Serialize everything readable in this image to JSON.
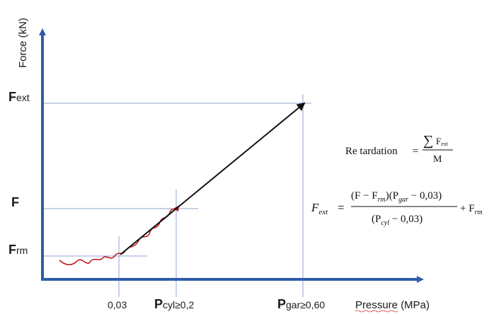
{
  "axes": {
    "y_label": "Force (kN)",
    "x_label": "Pressure (MPa)"
  },
  "y_ticks": {
    "fext": {
      "main": "F",
      "sub": "ext"
    },
    "f": {
      "main": "F",
      "sub": ""
    },
    "frm": {
      "main": "F",
      "sub": "rm"
    }
  },
  "x_ticks": {
    "p003": "0,03",
    "pcyl": {
      "main": "P",
      "sub": "cyl≥0,2"
    },
    "pgar": {
      "main": "P",
      "sub": "gar≥0,60"
    }
  },
  "formula1": {
    "lhs": "Re tardation",
    "eq": "=",
    "num_sum": "∑",
    "num_f": "F",
    "num_sub": "ext",
    "den": "M"
  },
  "formula2": {
    "lhs_f": "F",
    "lhs_sub": "ext",
    "eq": "=",
    "num_a": "(F − F",
    "num_a_sub": "rm",
    "num_b": ")(P",
    "num_b_sub": "gar",
    "num_c": " − 0,03)",
    "den_a": "(P",
    "den_a_sub": "cyl",
    "den_b": " − 0,03)",
    "plus": "+ F",
    "plus_sub": "rm"
  },
  "colors": {
    "axis": "#2f5da8",
    "guide": "#8fa6cf",
    "curve": "#c0141b",
    "arrow": "#111111"
  }
}
